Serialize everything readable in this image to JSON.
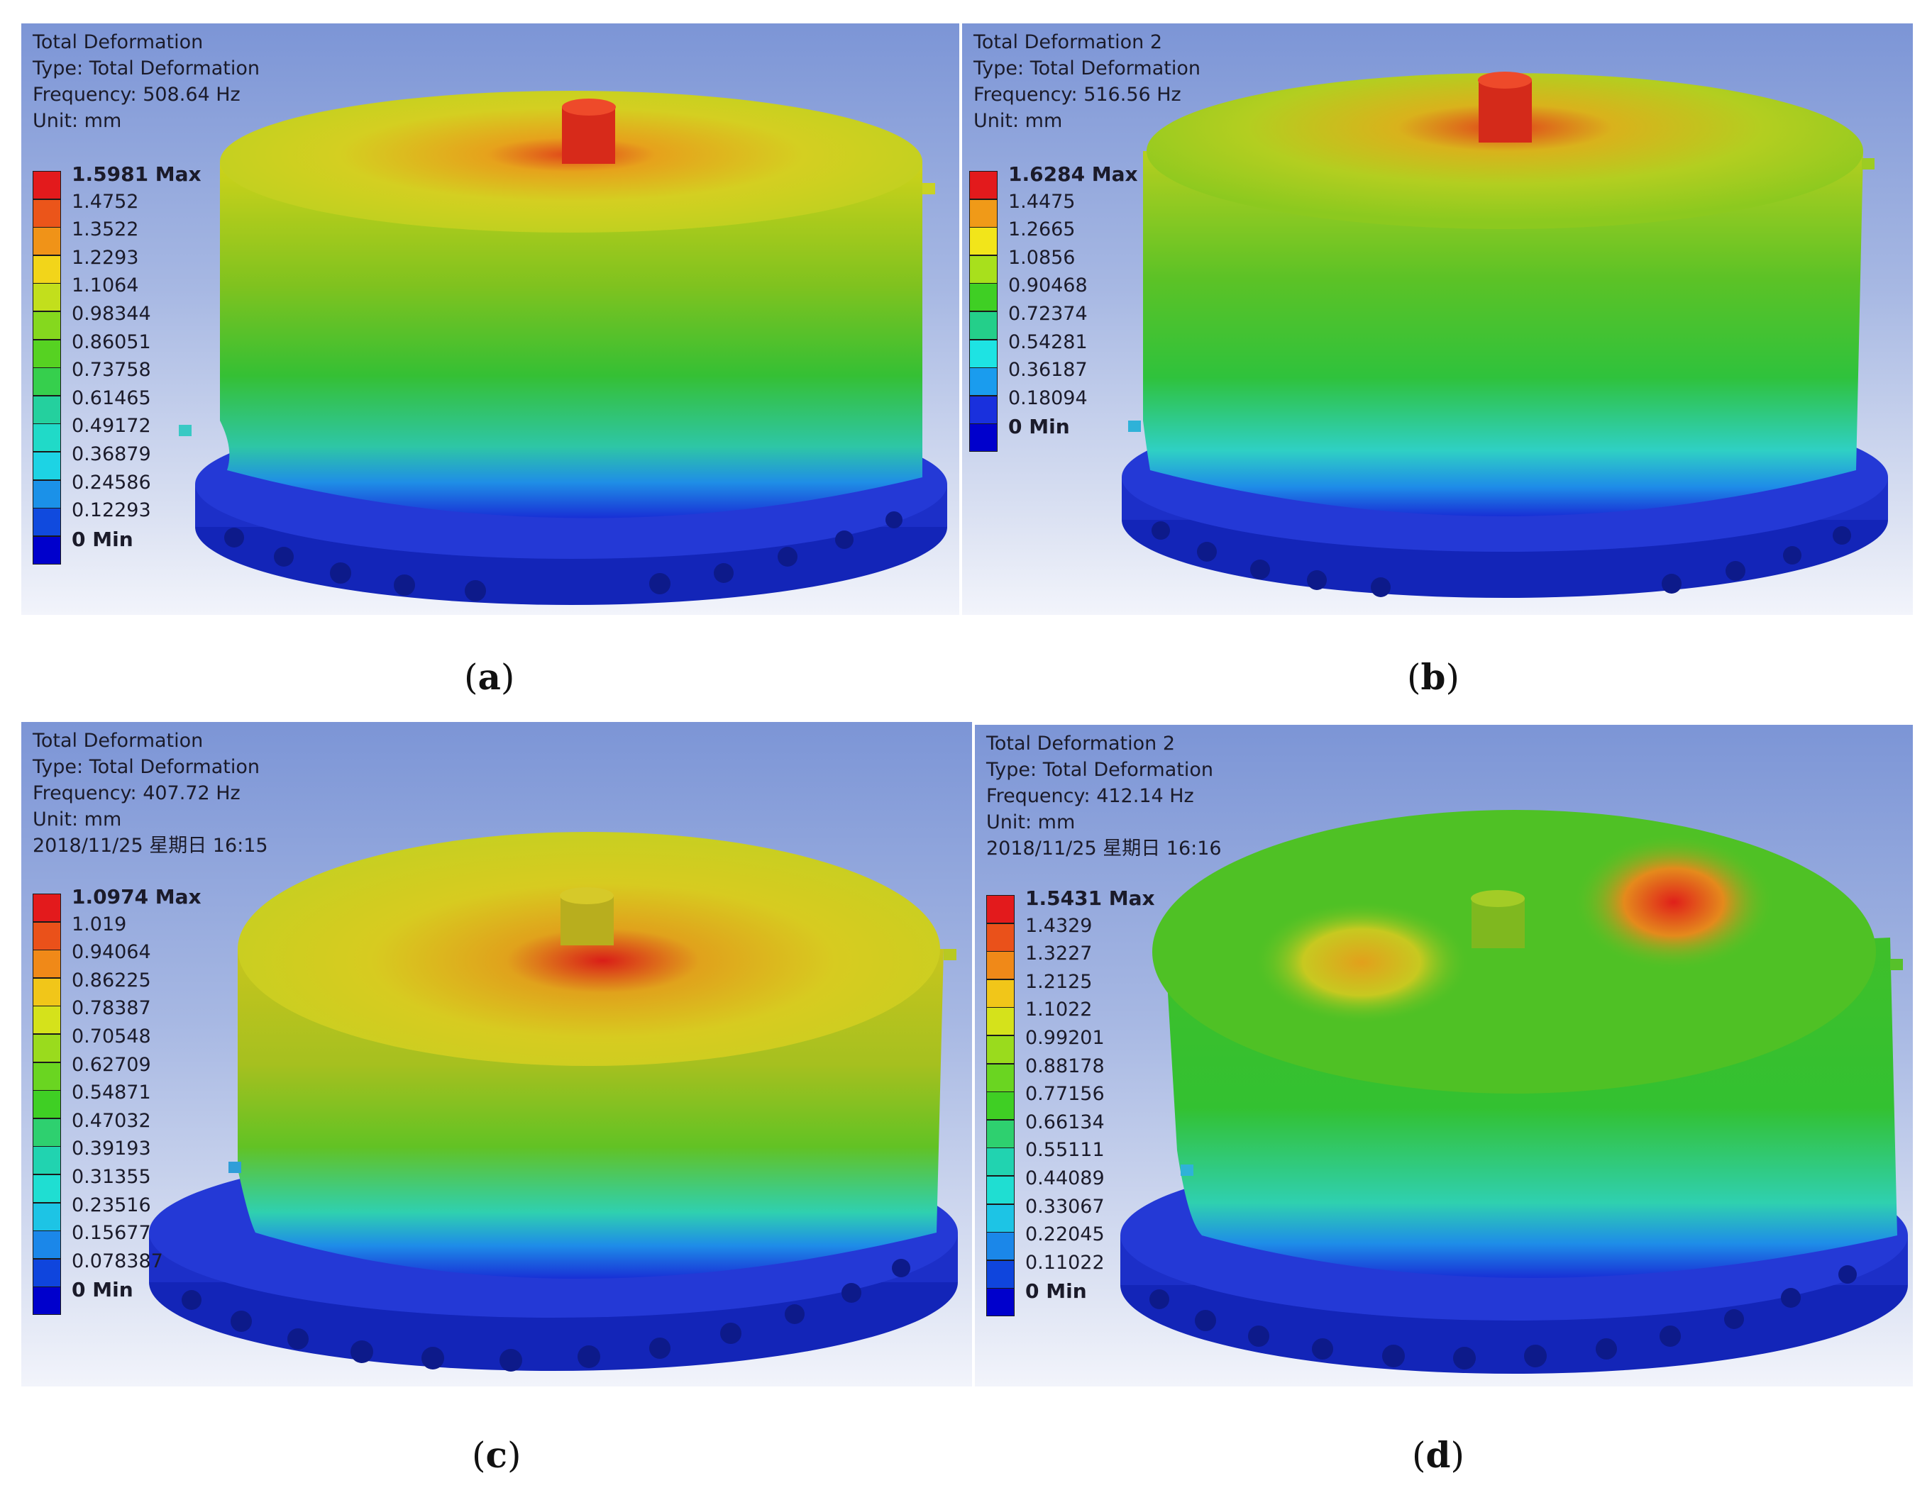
{
  "panels": [
    {
      "id": "a",
      "caption_label": "a",
      "header": [
        "Total Deformation",
        "Type: Total Deformation",
        "Frequency: 508.64 Hz",
        "Unit: mm"
      ],
      "legend": [
        "1.5981 Max",
        "1.4752",
        "1.3522",
        "1.2293",
        "1.1064",
        "0.98344",
        "0.86051",
        "0.73758",
        "0.61465",
        "0.49172",
        "0.36879",
        "0.24586",
        "0.12293",
        "0 Min"
      ]
    },
    {
      "id": "b",
      "caption_label": "b",
      "header": [
        "Total Deformation 2",
        "Type: Total Deformation",
        "Frequency: 516.56 Hz",
        "Unit: mm"
      ],
      "legend": [
        "1.6284 Max",
        "1.4475",
        "1.2665",
        "1.0856",
        "0.90468",
        "0.72374",
        "0.54281",
        "0.36187",
        "0.18094",
        "0 Min"
      ]
    },
    {
      "id": "c",
      "caption_label": "c",
      "header": [
        "Total Deformation",
        "Type: Total Deformation",
        "Frequency: 407.72 Hz",
        "Unit: mm",
        "2018/11/25 星期日 16:15"
      ],
      "legend": [
        "1.0974 Max",
        "1.019",
        "0.94064",
        "0.86225",
        "0.78387",
        "0.70548",
        "0.62709",
        "0.54871",
        "0.47032",
        "0.39193",
        "0.31355",
        "0.23516",
        "0.15677",
        "0.078387",
        "0 Min"
      ]
    },
    {
      "id": "d",
      "caption_label": "d",
      "header": [
        "Total Deformation 2",
        "Type: Total Deformation",
        "Frequency: 412.14 Hz",
        "Unit: mm",
        "2018/11/25 星期日 16:16"
      ],
      "legend": [
        "1.5431 Max",
        "1.4329",
        "1.3227",
        "1.2125",
        "1.1022",
        "0.99201",
        "0.88178",
        "0.77156",
        "0.66134",
        "0.55111",
        "0.44089",
        "0.33067",
        "0.22045",
        "0.11022",
        "0 Min"
      ]
    }
  ],
  "colors": {
    "background_top": "#7c95d6",
    "background_bottom": "#f2f4fb",
    "contour_max": "#e31a1c",
    "contour_min": "#0000cc",
    "base_ring": "#1c2fc8"
  }
}
